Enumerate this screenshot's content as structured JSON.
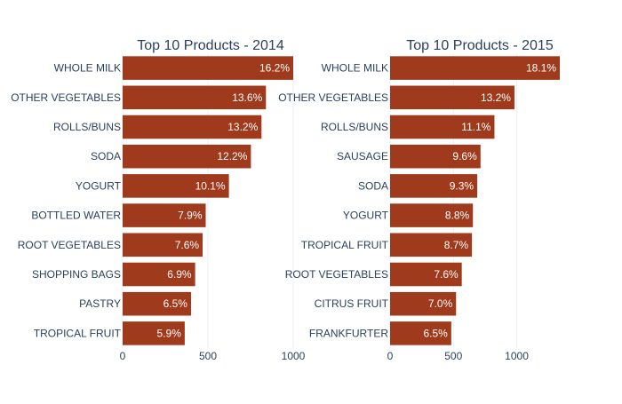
{
  "chart_data": [
    {
      "type": "bar",
      "orientation": "horizontal",
      "title": "Top 10 Products - 2014",
      "categories": [
        "WHOLE MILK",
        "OTHER VEGETABLES",
        "ROLLS/BUNS",
        "SODA",
        "YOGURT",
        "BOTTLED WATER",
        "ROOT VEGETABLES",
        "SHOPPING BAGS",
        "PASTRY",
        "TROPICAL FRUIT"
      ],
      "values": [
        1000,
        840,
        814,
        752,
        623,
        487,
        469,
        425,
        401,
        364
      ],
      "data_labels": [
        "16.2%",
        "13.6%",
        "13.2%",
        "12.2%",
        "10.1%",
        "7.9%",
        "7.6%",
        "6.9%",
        "6.5%",
        "5.9%"
      ],
      "xlim": [
        0,
        1000
      ],
      "x_ticks": [
        0,
        500,
        1000
      ],
      "x_tick_labels": [
        "0",
        "500",
        "1000"
      ],
      "grid": true
    },
    {
      "type": "bar",
      "orientation": "horizontal",
      "title": "Top 10 Products - 2015",
      "categories": [
        "WHOLE MILK",
        "OTHER VEGETABLES",
        "ROLLS/BUNS",
        "SAUSAGE",
        "SODA",
        "YOGURT",
        "TROPICAL FRUIT",
        "ROOT VEGETABLES",
        "CITRUS FRUIT",
        "FRANKFURTER"
      ],
      "values": [
        1340,
        982,
        824,
        714,
        688,
        654,
        646,
        566,
        521,
        483
      ],
      "data_labels": [
        "18.1%",
        "13.2%",
        "11.1%",
        "9.6%",
        "9.3%",
        "8.8%",
        "8.7%",
        "7.6%",
        "7.0%",
        "6.5%"
      ],
      "xlim": [
        0,
        1340
      ],
      "x_ticks": [
        0,
        500,
        1000
      ],
      "x_tick_labels": [
        "0",
        "500",
        "1000"
      ],
      "grid": true
    }
  ],
  "colors": {
    "bar": "#a03a1c",
    "text": "#2a3f5f",
    "data_label": "#ffffff",
    "grid": "#ebf0f8"
  }
}
